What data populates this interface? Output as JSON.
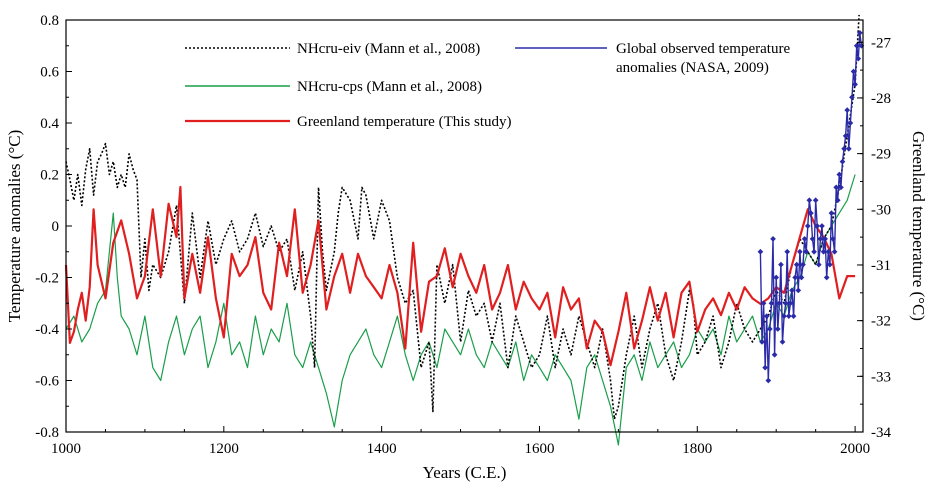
{
  "chart_data": {
    "type": "line",
    "xlabel": "Years (C.E.)",
    "ylabel": "Temperature anomalies (°C)",
    "y2label": "Greenland temperature (°C)",
    "xlim": [
      1000,
      2010
    ],
    "ylim": [
      -0.8,
      0.8
    ],
    "y2lim": [
      -34,
      -26.6
    ],
    "x_ticks": [
      1000,
      1200,
      1400,
      1600,
      1800,
      2000
    ],
    "y_ticks": [
      -0.8,
      -0.6,
      -0.4,
      -0.2,
      0,
      0.2,
      0.4,
      0.6,
      0.8
    ],
    "y_tick_labels": [
      "-0.8",
      "-0.6",
      "-0.4",
      "-0.2",
      "0",
      "0.2",
      "0.4",
      "0.6",
      "0.8"
    ],
    "y2_ticks": [
      -34,
      -33,
      -32,
      -31,
      -30,
      -29,
      -28,
      -27
    ],
    "y2_tick_labels": [
      "-34",
      "-33",
      "-32",
      "-31",
      "-30",
      "-29",
      "-28",
      "-27"
    ],
    "grid": false,
    "legend_position": "top",
    "series": [
      {
        "name": "NHcru-eiv (Mann et al., 2008)",
        "axis": "left",
        "color": "#000000",
        "style": "dotted",
        "x": [
          1000,
          1005,
          1010,
          1015,
          1020,
          1025,
          1030,
          1035,
          1040,
          1045,
          1050,
          1055,
          1060,
          1065,
          1070,
          1075,
          1080,
          1085,
          1090,
          1095,
          1100,
          1105,
          1110,
          1120,
          1130,
          1140,
          1150,
          1160,
          1170,
          1180,
          1190,
          1200,
          1210,
          1220,
          1230,
          1240,
          1250,
          1260,
          1270,
          1280,
          1290,
          1300,
          1310,
          1315,
          1320,
          1325,
          1330,
          1340,
          1345,
          1350,
          1360,
          1370,
          1375,
          1380,
          1390,
          1400,
          1410,
          1420,
          1430,
          1440,
          1450,
          1460,
          1465,
          1470,
          1480,
          1490,
          1500,
          1510,
          1520,
          1530,
          1540,
          1550,
          1560,
          1570,
          1580,
          1590,
          1600,
          1610,
          1620,
          1630,
          1640,
          1650,
          1660,
          1670,
          1680,
          1690,
          1695,
          1700,
          1710,
          1720,
          1730,
          1740,
          1750,
          1760,
          1770,
          1780,
          1790,
          1795,
          1800,
          1810,
          1820,
          1830,
          1840,
          1850,
          1860,
          1870,
          1880,
          1890,
          1900,
          1910,
          1920,
          1930,
          1940,
          1950,
          1960,
          1970,
          1980,
          1990,
          2000,
          2005
        ],
        "y": [
          0.25,
          0.18,
          0.1,
          0.2,
          0.08,
          0.22,
          0.3,
          0.12,
          0.25,
          0.28,
          0.32,
          0.2,
          0.25,
          0.15,
          0.2,
          0.15,
          0.28,
          0.22,
          0.18,
          -0.2,
          -0.05,
          -0.25,
          -0.15,
          -0.2,
          -0.1,
          0.08,
          -0.3,
          0.05,
          -0.2,
          0.02,
          -0.15,
          -0.05,
          0.02,
          -0.1,
          -0.05,
          0.05,
          -0.08,
          0.0,
          -0.1,
          -0.05,
          -0.25,
          -0.1,
          -0.35,
          -0.55,
          0.15,
          -0.1,
          -0.25,
          -0.1,
          0.05,
          0.15,
          0.1,
          -0.05,
          0.15,
          0.12,
          -0.05,
          0.1,
          0.02,
          -0.2,
          -0.3,
          -0.25,
          -0.55,
          -0.45,
          -0.72,
          -0.15,
          -0.3,
          -0.15,
          -0.45,
          -0.25,
          -0.35,
          -0.3,
          -0.45,
          -0.3,
          -0.55,
          -0.35,
          -0.45,
          -0.55,
          -0.5,
          -0.35,
          -0.55,
          -0.4,
          -0.5,
          -0.35,
          -0.45,
          -0.55,
          -0.4,
          -0.6,
          -0.75,
          -0.7,
          -0.5,
          -0.35,
          -0.55,
          -0.4,
          -0.3,
          -0.5,
          -0.6,
          -0.45,
          -0.25,
          -0.3,
          -0.5,
          -0.45,
          -0.35,
          -0.55,
          -0.45,
          -0.3,
          -0.4,
          -0.45,
          -0.4,
          -0.35,
          -0.25,
          -0.3,
          -0.15,
          -0.05,
          -0.1,
          -0.15,
          -0.05,
          0.0,
          0.15,
          0.35,
          0.55,
          0.82
        ]
      },
      {
        "name": "NHcru-cps (Mann et al., 2008)",
        "axis": "left",
        "color": "#1a9e4a",
        "style": "solid",
        "x": [
          1000,
          1010,
          1020,
          1030,
          1040,
          1050,
          1060,
          1065,
          1070,
          1080,
          1090,
          1100,
          1110,
          1120,
          1130,
          1140,
          1150,
          1160,
          1170,
          1180,
          1190,
          1200,
          1210,
          1220,
          1230,
          1240,
          1250,
          1260,
          1270,
          1280,
          1290,
          1300,
          1310,
          1320,
          1330,
          1340,
          1350,
          1360,
          1370,
          1380,
          1390,
          1400,
          1410,
          1420,
          1430,
          1440,
          1450,
          1460,
          1470,
          1480,
          1490,
          1500,
          1510,
          1520,
          1530,
          1540,
          1550,
          1560,
          1570,
          1580,
          1590,
          1600,
          1610,
          1620,
          1630,
          1640,
          1650,
          1660,
          1670,
          1680,
          1690,
          1700,
          1710,
          1720,
          1730,
          1740,
          1750,
          1760,
          1770,
          1780,
          1790,
          1800,
          1810,
          1820,
          1830,
          1840,
          1850,
          1860,
          1870,
          1880,
          1890,
          1900,
          1910,
          1920,
          1930,
          1940,
          1950,
          1960,
          1970,
          1980,
          1990,
          2000
        ],
        "y": [
          -0.4,
          -0.35,
          -0.45,
          -0.4,
          -0.3,
          -0.25,
          0.05,
          -0.2,
          -0.35,
          -0.4,
          -0.5,
          -0.35,
          -0.55,
          -0.6,
          -0.45,
          -0.35,
          -0.5,
          -0.4,
          -0.35,
          -0.55,
          -0.45,
          -0.3,
          -0.5,
          -0.45,
          -0.55,
          -0.35,
          -0.5,
          -0.4,
          -0.45,
          -0.3,
          -0.5,
          -0.55,
          -0.45,
          -0.55,
          -0.65,
          -0.78,
          -0.6,
          -0.5,
          -0.45,
          -0.4,
          -0.5,
          -0.55,
          -0.45,
          -0.35,
          -0.5,
          -0.6,
          -0.5,
          -0.45,
          -0.55,
          -0.4,
          -0.45,
          -0.5,
          -0.4,
          -0.5,
          -0.55,
          -0.45,
          -0.5,
          -0.55,
          -0.45,
          -0.6,
          -0.5,
          -0.55,
          -0.6,
          -0.5,
          -0.55,
          -0.6,
          -0.75,
          -0.55,
          -0.5,
          -0.6,
          -0.7,
          -0.85,
          -0.55,
          -0.5,
          -0.6,
          -0.45,
          -0.55,
          -0.5,
          -0.45,
          -0.55,
          -0.5,
          -0.4,
          -0.45,
          -0.4,
          -0.5,
          -0.35,
          -0.45,
          -0.4,
          -0.35,
          -0.45,
          -0.4,
          -0.3,
          -0.35,
          -0.25,
          -0.2,
          -0.1,
          -0.15,
          -0.05,
          0.0,
          0.05,
          0.1,
          0.2
        ]
      },
      {
        "name": "Greenland temperature (This study)",
        "axis": "right",
        "color": "#e02020",
        "style": "solid",
        "x": [
          1000,
          1005,
          1010,
          1015,
          1020,
          1025,
          1030,
          1035,
          1040,
          1050,
          1060,
          1070,
          1080,
          1090,
          1100,
          1110,
          1120,
          1130,
          1140,
          1145,
          1150,
          1160,
          1170,
          1180,
          1190,
          1200,
          1210,
          1220,
          1230,
          1240,
          1250,
          1260,
          1270,
          1280,
          1290,
          1300,
          1310,
          1320,
          1330,
          1340,
          1350,
          1360,
          1370,
          1380,
          1390,
          1400,
          1410,
          1420,
          1430,
          1440,
          1450,
          1460,
          1470,
          1480,
          1490,
          1500,
          1510,
          1520,
          1530,
          1540,
          1550,
          1560,
          1570,
          1580,
          1590,
          1600,
          1610,
          1620,
          1630,
          1640,
          1650,
          1660,
          1670,
          1680,
          1690,
          1700,
          1710,
          1720,
          1730,
          1740,
          1750,
          1760,
          1770,
          1780,
          1790,
          1800,
          1810,
          1820,
          1830,
          1840,
          1850,
          1860,
          1870,
          1880,
          1890,
          1900,
          1910,
          1920,
          1930,
          1940,
          1950,
          1960,
          1970,
          1980,
          1990,
          2000
        ],
        "y": [
          -31.0,
          -32.4,
          -32.2,
          -31.8,
          -31.5,
          -32.0,
          -31.4,
          -30.0,
          -31.0,
          -31.6,
          -30.6,
          -30.2,
          -30.8,
          -31.6,
          -31.2,
          -30.0,
          -31.2,
          -29.9,
          -30.5,
          -29.6,
          -31.6,
          -30.8,
          -31.5,
          -30.5,
          -31.6,
          -32.3,
          -30.8,
          -31.2,
          -31.0,
          -30.5,
          -31.5,
          -31.8,
          -30.6,
          -31.2,
          -30.0,
          -31.5,
          -31.0,
          -30.2,
          -31.8,
          -31.2,
          -30.8,
          -31.5,
          -30.8,
          -31.2,
          -31.4,
          -31.6,
          -31.0,
          -31.5,
          -32.5,
          -30.6,
          -32.2,
          -31.3,
          -31.2,
          -30.7,
          -31.4,
          -30.8,
          -31.2,
          -31.5,
          -31.0,
          -31.8,
          -31.5,
          -31.0,
          -31.8,
          -31.3,
          -31.6,
          -31.8,
          -31.5,
          -32.3,
          -31.4,
          -31.8,
          -31.6,
          -32.5,
          -32.0,
          -32.2,
          -32.8,
          -32.2,
          -31.5,
          -32.5,
          -32.0,
          -31.4,
          -32.0,
          -31.5,
          -32.3,
          -31.5,
          -31.3,
          -32.2,
          -31.8,
          -31.6,
          -31.9,
          -31.5,
          -31.8,
          -31.4,
          -31.6,
          -31.7,
          -31.6,
          -31.4,
          -31.5,
          -31.0,
          -30.5,
          -30.0,
          -30.3,
          -30.5,
          -30.8,
          -31.6,
          -31.2,
          -31.2
        ]
      },
      {
        "name": "Global observed temperature anomalies (NASA, 2009)",
        "axis": "left",
        "color": "#2b2ba8",
        "style": "solid-markers",
        "x": [
          1880,
          1882,
          1884,
          1886,
          1888,
          1890,
          1892,
          1894,
          1896,
          1898,
          1900,
          1902,
          1904,
          1906,
          1908,
          1910,
          1912,
          1914,
          1916,
          1918,
          1920,
          1922,
          1924,
          1926,
          1928,
          1930,
          1932,
          1934,
          1936,
          1938,
          1940,
          1942,
          1944,
          1946,
          1948,
          1950,
          1952,
          1954,
          1956,
          1958,
          1960,
          1962,
          1964,
          1966,
          1968,
          1970,
          1972,
          1974,
          1976,
          1978,
          1980,
          1982,
          1984,
          1986,
          1988,
          1990,
          1992,
          1994,
          1996,
          1998,
          2000,
          2002,
          2004,
          2006,
          2008
        ],
        "y": [
          -0.1,
          -0.45,
          -0.3,
          -0.55,
          -0.35,
          -0.6,
          -0.4,
          -0.3,
          -0.05,
          -0.5,
          -0.2,
          -0.4,
          -0.3,
          -0.15,
          -0.45,
          -0.35,
          -0.3,
          -0.1,
          -0.35,
          -0.3,
          -0.25,
          -0.35,
          -0.2,
          -0.15,
          -0.25,
          -0.1,
          -0.2,
          -0.15,
          -0.05,
          -0.1,
          0.0,
          0.1,
          0.05,
          -0.05,
          -0.1,
          0.1,
          0.0,
          -0.15,
          -0.05,
          0.0,
          -0.1,
          -0.05,
          -0.2,
          -0.1,
          -0.15,
          0.05,
          -0.05,
          -0.1,
          0.15,
          0.1,
          0.2,
          0.15,
          0.25,
          0.3,
          0.35,
          0.45,
          0.3,
          0.4,
          0.5,
          0.6,
          0.55,
          0.7,
          0.65,
          0.75,
          0.7
        ]
      }
    ]
  }
}
